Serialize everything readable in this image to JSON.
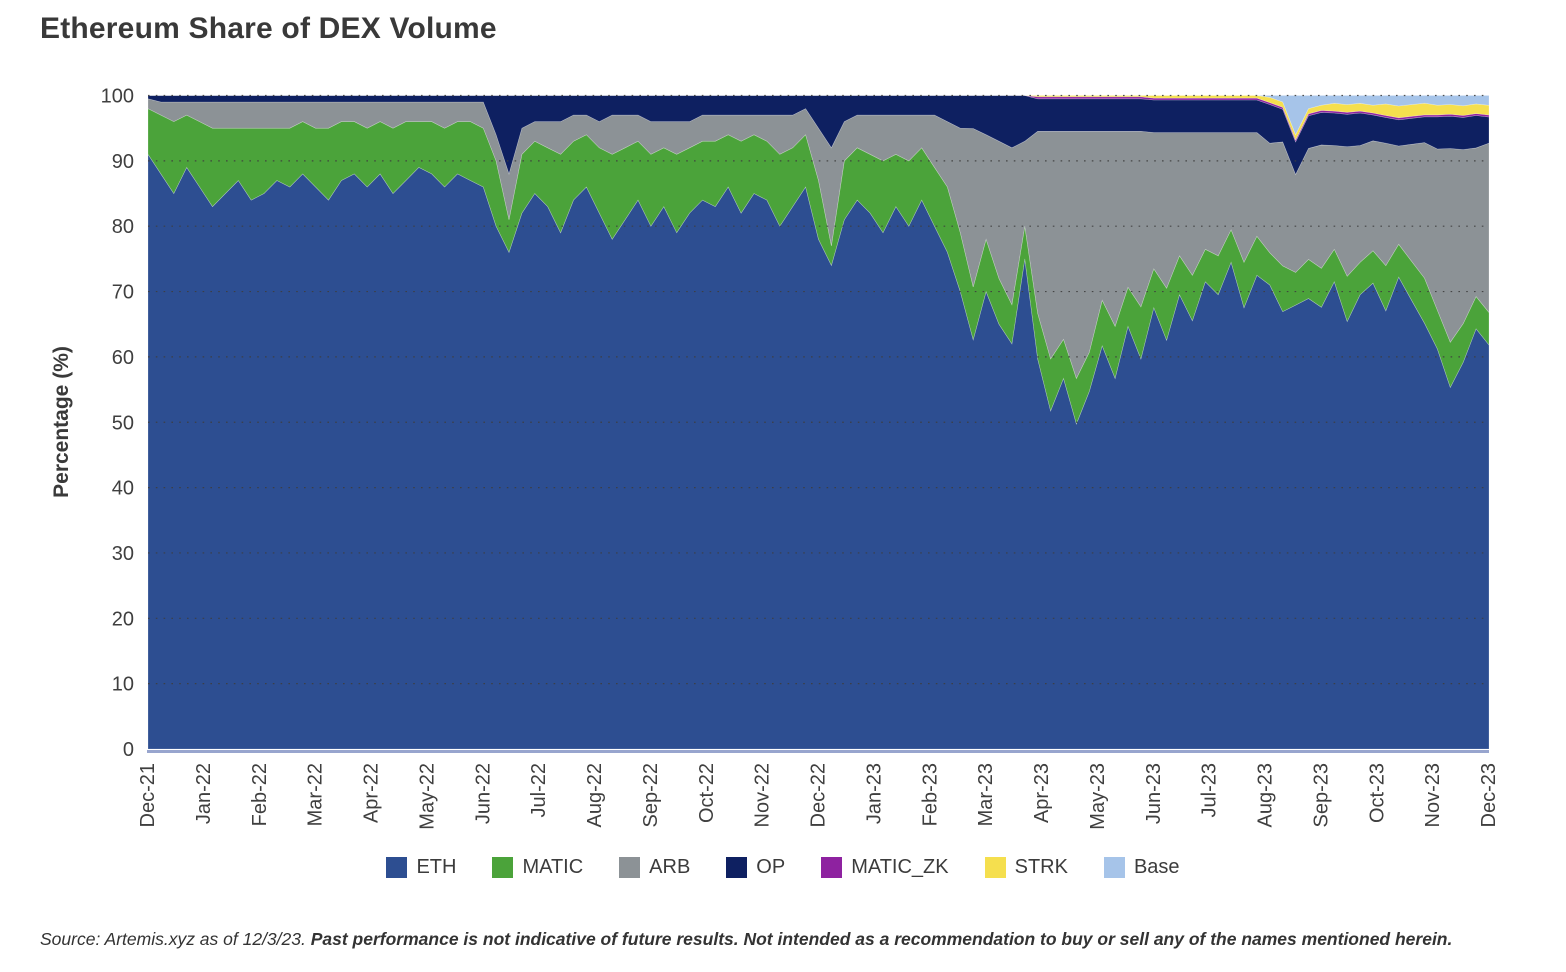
{
  "title": "Ethereum Share of DEX Volume",
  "source_note": {
    "normal": "Source: Artemis.xyz as of 12/3/23. ",
    "bold": "Past performance is not indicative of future results. Not intended as a recommendation to buy or sell any of the names mentioned herein."
  },
  "chart_data": {
    "type": "area",
    "stacked": true,
    "normalized_percent": true,
    "title": "Ethereum Share of DEX Volume",
    "xlabel": "",
    "ylabel": "Percentage (%)",
    "ylim": [
      0,
      100
    ],
    "y_ticks": [
      0,
      10,
      20,
      30,
      40,
      50,
      60,
      70,
      80,
      90,
      100
    ],
    "x_tick_labels": [
      "Dec-21",
      "Jan-22",
      "Feb-22",
      "Mar-22",
      "Apr-22",
      "May-22",
      "Jun-22",
      "Jul-22",
      "Aug-22",
      "Sep-22",
      "Oct-22",
      "Nov-22",
      "Dec-22",
      "Jan-23",
      "Feb-23",
      "Mar-23",
      "Apr-23",
      "May-23",
      "Jun-23",
      "Jul-23",
      "Aug-23",
      "Sep-23",
      "Oct-23",
      "Nov-23",
      "Dec-23"
    ],
    "x_unit": "weekly samples from Dec-21 to Dec-23 (original is daily)",
    "grid": "dotted horizontal lines at every 10%",
    "legend_position": "bottom-center",
    "axis_color": "#98a5ce",
    "grid_color": "#3e3e3e",
    "text_color": "#3f3f3f",
    "series": [
      {
        "name": "ETH",
        "color": "#2d4e91",
        "values": [
          91,
          88,
          85,
          89,
          86,
          83,
          85,
          87,
          84,
          85,
          87,
          86,
          88,
          86,
          84,
          87,
          88,
          86,
          88,
          85,
          87,
          89,
          88,
          86,
          88,
          87,
          86,
          80,
          76,
          82,
          85,
          83,
          79,
          84,
          86,
          82,
          78,
          81,
          84,
          80,
          83,
          79,
          82,
          84,
          83,
          86,
          82,
          85,
          84,
          80,
          83,
          86,
          78,
          74,
          81,
          84,
          82,
          79,
          83,
          80,
          84,
          80,
          76,
          70,
          62,
          70,
          65,
          62,
          75,
          60,
          52,
          57,
          50,
          55,
          62,
          57,
          65,
          60,
          68,
          63,
          70,
          66,
          72,
          70,
          75,
          68,
          73,
          72,
          67,
          68,
          69,
          68,
          72,
          66,
          70,
          72,
          68,
          72,
          69,
          66,
          62,
          56,
          60,
          65,
          62
        ]
      },
      {
        "name": "MATIC",
        "color": "#4ba33a",
        "values": [
          7,
          9,
          11,
          8,
          10,
          12,
          10,
          8,
          11,
          10,
          8,
          9,
          8,
          9,
          11,
          9,
          8,
          9,
          8,
          10,
          9,
          7,
          8,
          9,
          8,
          9,
          9,
          10,
          5,
          9,
          8,
          9,
          12,
          9,
          8,
          10,
          13,
          11,
          9,
          11,
          9,
          12,
          10,
          9,
          10,
          8,
          11,
          9,
          9,
          11,
          9,
          8,
          9,
          3,
          9,
          8,
          9,
          11,
          8,
          10,
          8,
          9,
          10,
          9,
          8,
          8,
          7,
          6,
          5,
          7,
          8,
          6,
          7,
          6,
          7,
          8,
          6,
          8,
          6,
          8,
          6,
          7,
          5,
          6,
          5,
          7,
          6,
          5,
          7,
          5,
          6,
          6,
          5,
          7,
          5,
          5,
          7,
          5,
          6,
          7,
          6,
          7,
          6,
          5,
          5
        ]
      },
      {
        "name": "ARB",
        "color": "#8c9296",
        "values": [
          1.5,
          2,
          3,
          2,
          3,
          4,
          4,
          4,
          4,
          4,
          4,
          4,
          3,
          4,
          4,
          3,
          3,
          4,
          3,
          4,
          3,
          3,
          3,
          4,
          3,
          3,
          4,
          4,
          7,
          4,
          3,
          4,
          5,
          4,
          3,
          4,
          6,
          5,
          4,
          5,
          4,
          5,
          4,
          4,
          4,
          3,
          4,
          3,
          4,
          6,
          5,
          4,
          8,
          15,
          6,
          5,
          6,
          7,
          6,
          7,
          5,
          8,
          10,
          16,
          24,
          16,
          21,
          24,
          13,
          28,
          35,
          32,
          38,
          34,
          26,
          30,
          24,
          27,
          21,
          24,
          19,
          22,
          18,
          19,
          15,
          20,
          16,
          17,
          19,
          15,
          17,
          19,
          16,
          20,
          18,
          17,
          19,
          15,
          18,
          21,
          25,
          30,
          27,
          23,
          26
        ]
      },
      {
        "name": "OP",
        "color": "#0e2061",
        "values": [
          0.5,
          1,
          1,
          1,
          1,
          1,
          1,
          1,
          1,
          1,
          1,
          1,
          1,
          1,
          1,
          1,
          1,
          1,
          1,
          1,
          1,
          1,
          1,
          1,
          1,
          1,
          1,
          6,
          12,
          5,
          4,
          4,
          4,
          3,
          3,
          4,
          3,
          3,
          3,
          4,
          4,
          4,
          4,
          3,
          3,
          3,
          3,
          3,
          3,
          3,
          3,
          2,
          5,
          8,
          4,
          3,
          3,
          3,
          3,
          3,
          3,
          3,
          4,
          5,
          5,
          6,
          7,
          8,
          7,
          5,
          5,
          5,
          5,
          5,
          5,
          5,
          5,
          5,
          5,
          5,
          5,
          5,
          5,
          5,
          5,
          5,
          5,
          6,
          5,
          5,
          5,
          5,
          5,
          5,
          5,
          4,
          4,
          4,
          4,
          4,
          5,
          5,
          5,
          5,
          4
        ]
      },
      {
        "name": "MATIC_ZK",
        "color": "#8e22a0",
        "values": [
          0,
          0,
          0,
          0,
          0,
          0,
          0,
          0,
          0,
          0,
          0,
          0,
          0,
          0,
          0,
          0,
          0,
          0,
          0,
          0,
          0,
          0,
          0,
          0,
          0,
          0,
          0,
          0,
          0,
          0,
          0,
          0,
          0,
          0,
          0,
          0,
          0,
          0,
          0,
          0,
          0,
          0,
          0,
          0,
          0,
          0,
          0,
          0,
          0,
          0,
          0,
          0,
          0,
          0,
          0,
          0,
          0,
          0,
          0,
          0,
          0,
          0,
          0,
          0,
          0,
          0,
          0,
          0,
          0,
          0.3,
          0.3,
          0.3,
          0.3,
          0.3,
          0.3,
          0.3,
          0.3,
          0.3,
          0.3,
          0.3,
          0.3,
          0.3,
          0.3,
          0.3,
          0.3,
          0.3,
          0.3,
          0.3,
          0.3,
          0.3,
          0.3,
          0.3,
          0.3,
          0.3,
          0.3,
          0.3,
          0.3,
          0.3,
          0.3,
          0.3,
          0.3,
          0.3,
          0.3,
          0.3,
          0.3
        ]
      },
      {
        "name": "STRK",
        "color": "#f5df4e",
        "values": [
          0,
          0,
          0,
          0,
          0,
          0,
          0,
          0,
          0,
          0,
          0,
          0,
          0,
          0,
          0,
          0,
          0,
          0,
          0,
          0,
          0,
          0,
          0,
          0,
          0,
          0,
          0,
          0,
          0,
          0,
          0,
          0,
          0,
          0,
          0,
          0,
          0,
          0,
          0,
          0,
          0,
          0,
          0,
          0,
          0,
          0,
          0,
          0,
          0,
          0,
          0,
          0,
          0,
          0,
          0,
          0,
          0,
          0,
          0,
          0,
          0,
          0,
          0,
          0,
          0,
          0,
          0,
          0,
          0,
          0.2,
          0.2,
          0.2,
          0.2,
          0.2,
          0.2,
          0.2,
          0.2,
          0.2,
          0.4,
          0.4,
          0.4,
          0.4,
          0.4,
          0.4,
          0.4,
          0.4,
          0.4,
          0.8,
          0.8,
          0.8,
          0.8,
          0.8,
          1.2,
          1.2,
          1.2,
          1.2,
          1.8,
          1.8,
          1.8,
          1.8,
          1.5,
          1.5,
          1.5,
          1.5,
          1.5
        ]
      },
      {
        "name": "Base",
        "color": "#a6c4e9",
        "values": [
          0,
          0,
          0,
          0,
          0,
          0,
          0,
          0,
          0,
          0,
          0,
          0,
          0,
          0,
          0,
          0,
          0,
          0,
          0,
          0,
          0,
          0,
          0,
          0,
          0,
          0,
          0,
          0,
          0,
          0,
          0,
          0,
          0,
          0,
          0,
          0,
          0,
          0,
          0,
          0,
          0,
          0,
          0,
          0,
          0,
          0,
          0,
          0,
          0,
          0,
          0,
          0,
          0,
          0,
          0,
          0,
          0,
          0,
          0,
          0,
          0,
          0,
          0,
          0,
          0,
          0,
          0,
          0,
          0,
          0,
          0,
          0,
          0,
          0,
          0,
          0,
          0,
          0,
          0,
          0,
          0,
          0,
          0,
          0,
          0,
          0,
          0,
          0.3,
          1,
          6,
          2,
          1.5,
          1.2,
          1.4,
          1.2,
          1.5,
          1.3,
          1.6,
          1.4,
          1.2,
          1.5,
          1.4,
          1.6,
          1.3,
          1.5
        ]
      }
    ]
  }
}
